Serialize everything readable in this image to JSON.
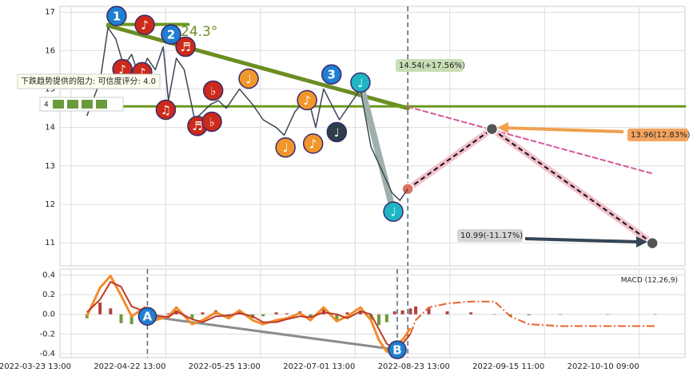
{
  "chart_data": [
    {
      "type": "line",
      "annotation": "24.3°",
      "tooltip": "下跌趋势提供的阻力: 可信度评分: 4.0",
      "badge": "4",
      "ylim": [
        10.4,
        17.15
      ],
      "yticks": [
        11,
        12,
        13,
        14,
        15,
        16,
        17
      ],
      "xlim": [
        -4.25,
        233.4
      ],
      "grid": true,
      "price": {
        "color": "#3b4656",
        "x": [
          6,
          11,
          14,
          17,
          20,
          23,
          26,
          29,
          32,
          35,
          37,
          40,
          43,
          47,
          50,
          53,
          56,
          59,
          64,
          69,
          73,
          78,
          81,
          85,
          90,
          93,
          96,
          99,
          102,
          107,
          110,
          114,
          118,
          122,
          125,
          128
        ],
        "values": [
          14.3,
          15.2,
          16.6,
          16.3,
          15.6,
          15.9,
          15.3,
          15.8,
          15.5,
          16.1,
          14.7,
          15.8,
          15.5,
          14.2,
          14.4,
          14.6,
          14.7,
          14.5,
          15.0,
          14.6,
          14.2,
          14.0,
          13.8,
          14.4,
          14.8,
          14.0,
          15.0,
          14.6,
          14.2,
          14.7,
          15.0,
          13.5,
          12.9,
          12.3,
          12.1,
          12.4
        ]
      },
      "vlines": [
        128
      ],
      "trend_lines": [
        {
          "x": [
            14,
            128
          ],
          "y": [
            16.65,
            14.5
          ],
          "color": "#6b8e23",
          "width": 5
        },
        {
          "x": [
            -4.25,
            233.4
          ],
          "y": [
            14.55,
            14.55
          ],
          "color": "#6b9a1f",
          "width": 3
        },
        {
          "x": [
            14,
            44.5
          ],
          "y": [
            16.68,
            16.68
          ],
          "color": "#6b9a1f",
          "width": 4
        },
        {
          "x": [
            128,
            221
          ],
          "y": [
            14.54,
            12.8
          ],
          "color": "#d6589c",
          "width": 2,
          "dash": true
        },
        {
          "x": [
            110,
            122.5
          ],
          "y": [
            15.17,
            11.81
          ],
          "color": "#9fb0ac",
          "width": 8
        },
        {
          "x": [
            128,
            160,
            221
          ],
          "y": [
            12.4,
            13.96,
            10.99
          ],
          "color": "#f2bfcb",
          "width": 8,
          "dash_color": "#111"
        }
      ],
      "markers": [
        {
          "x": 17.3,
          "y": 16.9,
          "label": "1",
          "color": "#1f7fd0"
        },
        {
          "x": 38,
          "y": 16.42,
          "label": "2",
          "color": "#1f7fd0"
        },
        {
          "x": 99,
          "y": 15.38,
          "label": "3",
          "color": "#1f7fd0"
        },
        {
          "x": 28,
          "y": 16.67,
          "label": "♪",
          "color": "#cc2a1a"
        },
        {
          "x": 19.5,
          "y": 15.52,
          "label": "♪",
          "color": "#cc2a1a"
        },
        {
          "x": 27,
          "y": 15.44,
          "label": "♪",
          "color": "#cc2a1a"
        },
        {
          "x": 43.5,
          "y": 16.1,
          "label": "♬",
          "color": "#cc2a1a"
        },
        {
          "x": 36,
          "y": 14.46,
          "label": "♫",
          "color": "#cc2a1a"
        },
        {
          "x": 48,
          "y": 14.04,
          "label": "♬",
          "color": "#cc2a1a"
        },
        {
          "x": 54,
          "y": 14.96,
          "label": "♭",
          "color": "#cc2a1a"
        },
        {
          "x": 53.5,
          "y": 14.15,
          "label": "♭",
          "color": "#cc2a1a"
        },
        {
          "x": 67.5,
          "y": 15.27,
          "label": "♩",
          "color": "#f0962a"
        },
        {
          "x": 89.7,
          "y": 14.71,
          "label": "♪",
          "color": "#f0962a"
        },
        {
          "x": 81.5,
          "y": 13.48,
          "label": "♩",
          "color": "#f0962a"
        },
        {
          "x": 92,
          "y": 13.58,
          "label": "♪",
          "color": "#f0962a"
        },
        {
          "x": 101,
          "y": 13.88,
          "label": "♩",
          "color": "#2f3d4a"
        },
        {
          "x": 110,
          "y": 15.17,
          "label": "♩",
          "color": "#1eb5c4"
        },
        {
          "x": 122.5,
          "y": 11.81,
          "label": "♩",
          "color": "#1eb5c4"
        }
      ],
      "callouts": [
        {
          "value": 14.54,
          "label": "14.54(+17.56%)",
          "color": "#c8ddb4"
        },
        {
          "value": 13.96,
          "label": "13.96(12.83%)",
          "color": "#f4a460"
        },
        {
          "value": 10.99,
          "label": "10.99(-11.17%)",
          "color": "#d5d5d5"
        }
      ]
    },
    {
      "type": "line",
      "title": "MACD (12,26,9)",
      "ylim": [
        -0.44,
        0.46
      ],
      "yticks": [
        0.4,
        0.2,
        {
          "value": 0,
          "label": "0.0"
        },
        -0.2,
        -0.4
      ],
      "xlim": [
        -4.25,
        233.4
      ],
      "xticks": [
        {
          "value": 0,
          "label": "2022-03-23 13:00"
        },
        {
          "value": 36,
          "label": "2022-04-22 13:00"
        },
        {
          "value": 72,
          "label": "2022-05-25 13:00"
        },
        {
          "value": 108,
          "label": "2022-07-01 13:00"
        },
        {
          "value": 144,
          "label": "2022-08-23 13:00"
        },
        {
          "value": 180,
          "label": "2022-09-15 11:00"
        },
        {
          "value": 216,
          "label": "2022-10-10 09:00"
        }
      ],
      "grid": true,
      "x": [
        6,
        11,
        15,
        19,
        23,
        28,
        32,
        37,
        40,
        46,
        50,
        55,
        60,
        64,
        69,
        73,
        78,
        82,
        87,
        91,
        96,
        101,
        105,
        110,
        114,
        117,
        120,
        123,
        126,
        129,
        131,
        136,
        143,
        152,
        161,
        167,
        174,
        186,
        204,
        222
      ],
      "series": [
        {
          "color": "#f28c28",
          "width": 3,
          "values": [
            -0.02,
            0.27,
            0.39,
            0.19,
            -0.02,
            0.07,
            -0.06,
            -0.02,
            0.07,
            -0.1,
            -0.06,
            0.02,
            -0.04,
            0.04,
            -0.06,
            -0.1,
            -0.06,
            -0.04,
            0.01,
            -0.06,
            0.07,
            -0.07,
            -0.02,
            0.07,
            -0.06,
            -0.26,
            -0.38,
            -0.32,
            -0.26,
            -0.14,
            null,
            null,
            null,
            null,
            null,
            null,
            null,
            null,
            null,
            null
          ]
        },
        {
          "color": "#c0392b",
          "width": 2,
          "values": [
            0.02,
            0.15,
            0.33,
            0.28,
            0.08,
            0.03,
            -0.01,
            -0.03,
            0.03,
            -0.05,
            -0.08,
            -0.02,
            -0.01,
            0.01,
            -0.02,
            -0.08,
            -0.08,
            -0.05,
            -0.02,
            -0.03,
            0.02,
            0.0,
            -0.04,
            0.03,
            0.0,
            -0.15,
            -0.3,
            -0.35,
            -0.3,
            -0.2,
            null,
            null,
            null,
            null,
            null,
            null,
            null,
            null,
            null,
            null
          ]
        },
        {
          "color": "#e8622d",
          "width": 2,
          "dash": true,
          "values": [
            null,
            null,
            null,
            null,
            null,
            null,
            null,
            null,
            null,
            null,
            null,
            null,
            null,
            null,
            null,
            null,
            null,
            null,
            null,
            null,
            null,
            null,
            null,
            null,
            null,
            null,
            null,
            null,
            null,
            -0.2,
            -0.06,
            0.07,
            0.11,
            0.13,
            0.13,
            -0.02,
            -0.1,
            -0.12,
            -0.12,
            -0.12
          ]
        }
      ],
      "histogram": {
        "positive_color": "#b0413e",
        "negative_color": "#6f9a3a",
        "values": [
          -0.04,
          0.12,
          0.06,
          -0.09,
          -0.1,
          0.04,
          -0.05,
          0.01,
          0.04,
          -0.05,
          0.02,
          0.04,
          -0.03,
          0.03,
          -0.04,
          -0.02,
          0.02,
          0.01,
          0.03,
          -0.03,
          0.05,
          -0.07,
          0.02,
          0.04,
          -0.06,
          -0.11,
          -0.08,
          0.03,
          0.04,
          0.06,
          0.08,
          0.06,
          0.03,
          0.02,
          0,
          -0.02,
          -0.01,
          0,
          0,
          0
        ]
      },
      "vlines": [
        29,
        124,
        128
      ],
      "trend_lines": [
        {
          "x": [
            29,
            124
          ],
          "y": [
            -0.02,
            -0.36
          ],
          "color": "#8c8c8c",
          "width": 3
        }
      ],
      "markers": [
        {
          "x": 29,
          "y": -0.02,
          "label": "A",
          "color": "#1f7fd0"
        },
        {
          "x": 124,
          "y": -0.36,
          "label": "B",
          "color": "#1f7fd0"
        }
      ]
    }
  ]
}
